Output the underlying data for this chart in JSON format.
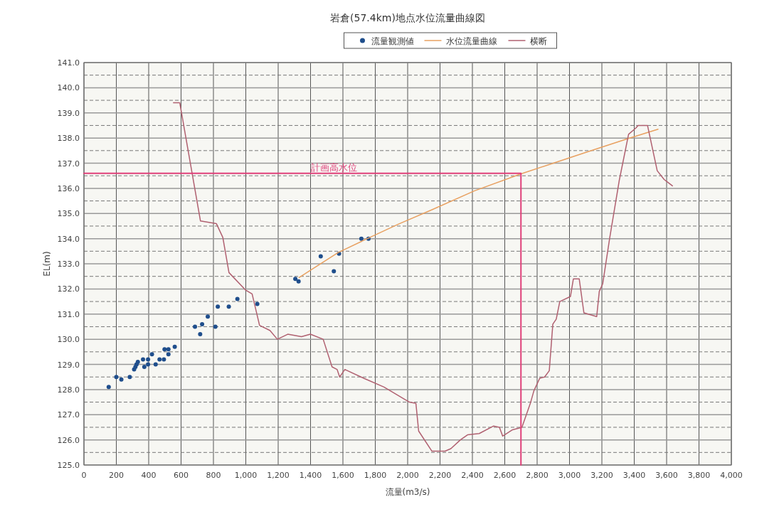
{
  "chart_data": {
    "type": "scatter",
    "title": "岩倉(57.4km)地点水位流量曲線図",
    "xlabel": "流量(m3/s)",
    "ylabel": "EL(m)",
    "xlim": [
      0,
      4000
    ],
    "xticks": [
      0,
      200,
      400,
      600,
      800,
      {
        "value": 1000,
        "label": "1,000"
      },
      {
        "value": 1200,
        "label": "1,200"
      },
      {
        "value": 1400,
        "label": "1,400"
      },
      {
        "value": 1600,
        "label": "1,600"
      },
      {
        "value": 1800,
        "label": "1,800"
      },
      {
        "value": 2000,
        "label": "2,000"
      },
      {
        "value": 2200,
        "label": "2,200"
      },
      {
        "value": 2400,
        "label": "2,400"
      },
      {
        "value": 2600,
        "label": "2,600"
      },
      {
        "value": 2800,
        "label": "2,800"
      },
      {
        "value": 3000,
        "label": "3,000"
      },
      {
        "value": 3200,
        "label": "3,200"
      },
      {
        "value": 3400,
        "label": "3,400"
      },
      {
        "value": 3600,
        "label": "3,600"
      },
      {
        "value": 3800,
        "label": "3,800"
      },
      {
        "value": 4000,
        "label": "4,000"
      }
    ],
    "ylim": [
      125,
      141
    ],
    "yticks": [
      {
        "value": 125,
        "label": "125.0"
      },
      {
        "value": 125.5,
        "label": null
      },
      {
        "value": 126,
        "label": "126.0"
      },
      {
        "value": 126.5,
        "label": null
      },
      {
        "value": 127,
        "label": "127.0"
      },
      {
        "value": 127.5,
        "label": null
      },
      {
        "value": 128,
        "label": "128.0"
      },
      {
        "value": 128.5,
        "label": null
      },
      {
        "value": 129,
        "label": "129.0"
      },
      {
        "value": 129.5,
        "label": null
      },
      {
        "value": 130,
        "label": "130.0"
      },
      {
        "value": 130.5,
        "label": null
      },
      {
        "value": 131,
        "label": "131.0"
      },
      {
        "value": 131.5,
        "label": null
      },
      {
        "value": 132,
        "label": "132.0"
      },
      {
        "value": 132.5,
        "label": null
      },
      {
        "value": 133,
        "label": "133.0"
      },
      {
        "value": 133.5,
        "label": null
      },
      {
        "value": 134,
        "label": "134.0"
      },
      {
        "value": 134.5,
        "label": null
      },
      {
        "value": 135,
        "label": "135.0"
      },
      {
        "value": 135.5,
        "label": null
      },
      {
        "value": 136,
        "label": "136.0"
      },
      {
        "value": 136.5,
        "label": null
      },
      {
        "value": 137,
        "label": "137.0"
      },
      {
        "value": 137.5,
        "label": null
      },
      {
        "value": 138,
        "label": "138.0"
      },
      {
        "value": 138.5,
        "label": null
      },
      {
        "value": 139,
        "label": "139.0"
      },
      {
        "value": 139.5,
        "label": null
      },
      {
        "value": 140,
        "label": "140.0"
      },
      {
        "value": 140.5,
        "label": null
      },
      {
        "value": 141,
        "label": "141.0"
      }
    ],
    "grid": true,
    "legend": "top",
    "annotations": [
      {
        "text": "計画高水位",
        "x": 1400,
        "y": 136.6
      }
    ],
    "series": [
      {
        "name": "流量観測値",
        "marker": "circle",
        "color": "#1f4e8c",
        "x": [
          153,
          200,
          231,
          283,
          310,
          318,
          325,
          333,
          365,
          373,
          396,
          396,
          420,
          443,
          467,
          494,
          498,
          522,
          522,
          561,
          686,
          718,
          730,
          765,
          812,
          827,
          895,
          948,
          1071,
          1306,
          1326,
          1463,
          1544,
          1576,
          1714,
          1758
        ],
        "values": [
          128.1,
          128.5,
          128.4,
          128.5,
          128.8,
          128.9,
          129.0,
          129.1,
          129.2,
          128.9,
          129.0,
          129.2,
          129.4,
          129.0,
          129.2,
          129.2,
          129.6,
          129.4,
          129.6,
          129.7,
          130.5,
          130.2,
          130.6,
          130.9,
          130.5,
          131.3,
          131.3,
          131.6,
          131.4,
          132.4,
          132.3,
          133.3,
          132.7,
          133.4,
          134.0,
          134.0
        ]
      },
      {
        "name": "水位流量曲線",
        "type": "line",
        "color": "#e8a060",
        "x": [
          1329,
          1413,
          1571,
          1750,
          1944,
          2150,
          2413,
          2694,
          2900,
          3115,
          3357,
          3547
        ],
        "values": [
          132.45,
          132.8,
          133.45,
          134.0,
          134.58,
          135.15,
          135.9,
          136.56,
          137.0,
          137.46,
          137.97,
          138.35
        ]
      },
      {
        "name": "横断",
        "type": "line",
        "color": "#b06070",
        "x": [
          553,
          592,
          720,
          818,
          858,
          896,
          1000,
          1039,
          1085,
          1149,
          1195,
          1259,
          1344,
          1399,
          1478,
          1533,
          1564,
          1580,
          1612,
          1729,
          1854,
          2011,
          2051,
          2068,
          2150,
          2231,
          2267,
          2326,
          2370,
          2442,
          2531,
          2567,
          2587,
          2648,
          2706,
          2758,
          2780,
          2816,
          2846,
          2875,
          2897,
          2918,
          2940,
          3006,
          3024,
          3060,
          3089,
          3168,
          3184,
          3205,
          3249,
          3307,
          3365,
          3410,
          3424,
          3482,
          3542,
          3585,
          3636
        ],
        "values": [
          139.4,
          139.4,
          134.7,
          134.6,
          134.05,
          132.65,
          131.95,
          131.8,
          130.55,
          130.35,
          130.0,
          130.2,
          130.1,
          130.2,
          130.0,
          128.9,
          128.8,
          128.5,
          128.8,
          128.45,
          128.1,
          127.5,
          127.45,
          126.35,
          125.55,
          125.55,
          125.65,
          126.0,
          126.2,
          126.25,
          126.55,
          126.5,
          126.15,
          126.4,
          126.5,
          127.45,
          127.95,
          128.45,
          128.5,
          128.75,
          130.6,
          130.8,
          131.5,
          131.7,
          132.4,
          132.4,
          131.05,
          130.9,
          131.9,
          132.2,
          134.05,
          136.3,
          138.15,
          138.4,
          138.5,
          138.5,
          136.7,
          136.35,
          136.1
        ]
      },
      {
        "type": "line",
        "color": "#e0407a",
        "x": [
          0,
          2700,
          2700
        ],
        "values": [
          136.6,
          136.6,
          125
        ]
      }
    ]
  }
}
